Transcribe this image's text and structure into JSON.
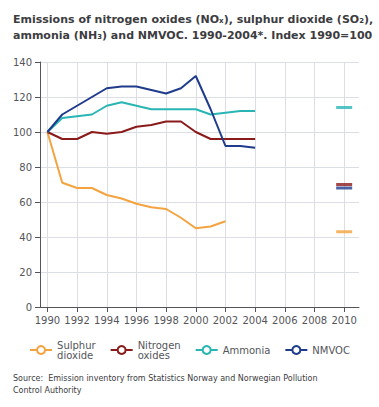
{
  "chart_data": {
    "type": "line",
    "title": "Emissions of nitrogen oxides (NOₓ), sulphur dioxide (SO₂),\nammonia (NH₃) and NMVOC. 1990-2004*. Index 1990=100",
    "source": "Source:  Emission inventory from Statistics Norway and Norwegian Pollution\nControl Authority",
    "xlim": [
      1989.5,
      2011
    ],
    "ylim": [
      0,
      140
    ],
    "xticks": [
      1990,
      1992,
      1994,
      1996,
      1998,
      2000,
      2002,
      2004,
      2006,
      2008,
      2010
    ],
    "yticks": [
      0,
      20,
      40,
      60,
      80,
      100,
      120,
      140
    ],
    "grid": true,
    "legend": "bottom",
    "series": [
      {
        "name": "Sulphur\ndioxide",
        "color": "#f4a340",
        "x": [
          1990,
          1991,
          1992,
          1993,
          1994,
          1995,
          1996,
          1997,
          1998,
          1999,
          2000,
          2001,
          2002
        ],
        "values": [
          100,
          71,
          68,
          68,
          64,
          62,
          59,
          57,
          56,
          51,
          45,
          46,
          49
        ],
        "projection": {
          "x": 2010,
          "value": 43
        }
      },
      {
        "name": "Nitrogen\noxides",
        "color": "#8b1a1a",
        "x": [
          1990,
          1991,
          1992,
          1993,
          1994,
          1995,
          1996,
          1997,
          1998,
          1999,
          2000,
          2001,
          2002,
          2003,
          2004
        ],
        "values": [
          100,
          96,
          96,
          100,
          99,
          100,
          103,
          104,
          106,
          106,
          100,
          96,
          96,
          96,
          96
        ],
        "projection": {
          "x": 2010,
          "value": 70
        }
      },
      {
        "name": "Ammonia",
        "color": "#2ab5b5",
        "x": [
          1990,
          1991,
          1992,
          1993,
          1994,
          1995,
          1996,
          1997,
          1998,
          1999,
          2000,
          2001,
          2002,
          2003,
          2004
        ],
        "values": [
          100,
          108,
          109,
          110,
          115,
          117,
          115,
          113,
          113,
          113,
          113,
          110,
          111,
          112,
          112
        ],
        "projection": {
          "x": 2010,
          "value": 114
        }
      },
      {
        "name": "NMVOC",
        "color": "#1f3b8c",
        "x": [
          1990,
          1991,
          1992,
          1993,
          1994,
          1995,
          1996,
          1997,
          1998,
          1999,
          2000,
          2001,
          2002,
          2003,
          2004
        ],
        "values": [
          100,
          110,
          115,
          120,
          125,
          126,
          126,
          124,
          122,
          125,
          132,
          113,
          92,
          92,
          91
        ],
        "projection": {
          "x": 2010,
          "value": 68
        }
      }
    ]
  }
}
